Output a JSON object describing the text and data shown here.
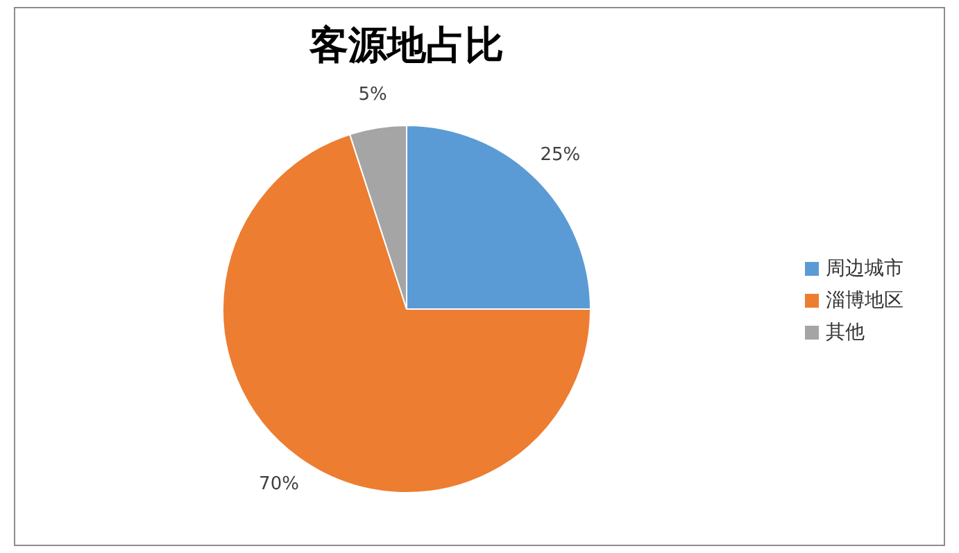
{
  "chart_data": {
    "type": "pie",
    "title": "客源地占比",
    "categories": [
      "周边城市",
      "淄博地区",
      "其他"
    ],
    "values": [
      25,
      70,
      5
    ],
    "colors": [
      "#5b9bd5",
      "#ed7d31",
      "#a5a5a5"
    ],
    "value_labels": [
      "25%",
      "70%",
      "5%"
    ],
    "legend": "right"
  }
}
